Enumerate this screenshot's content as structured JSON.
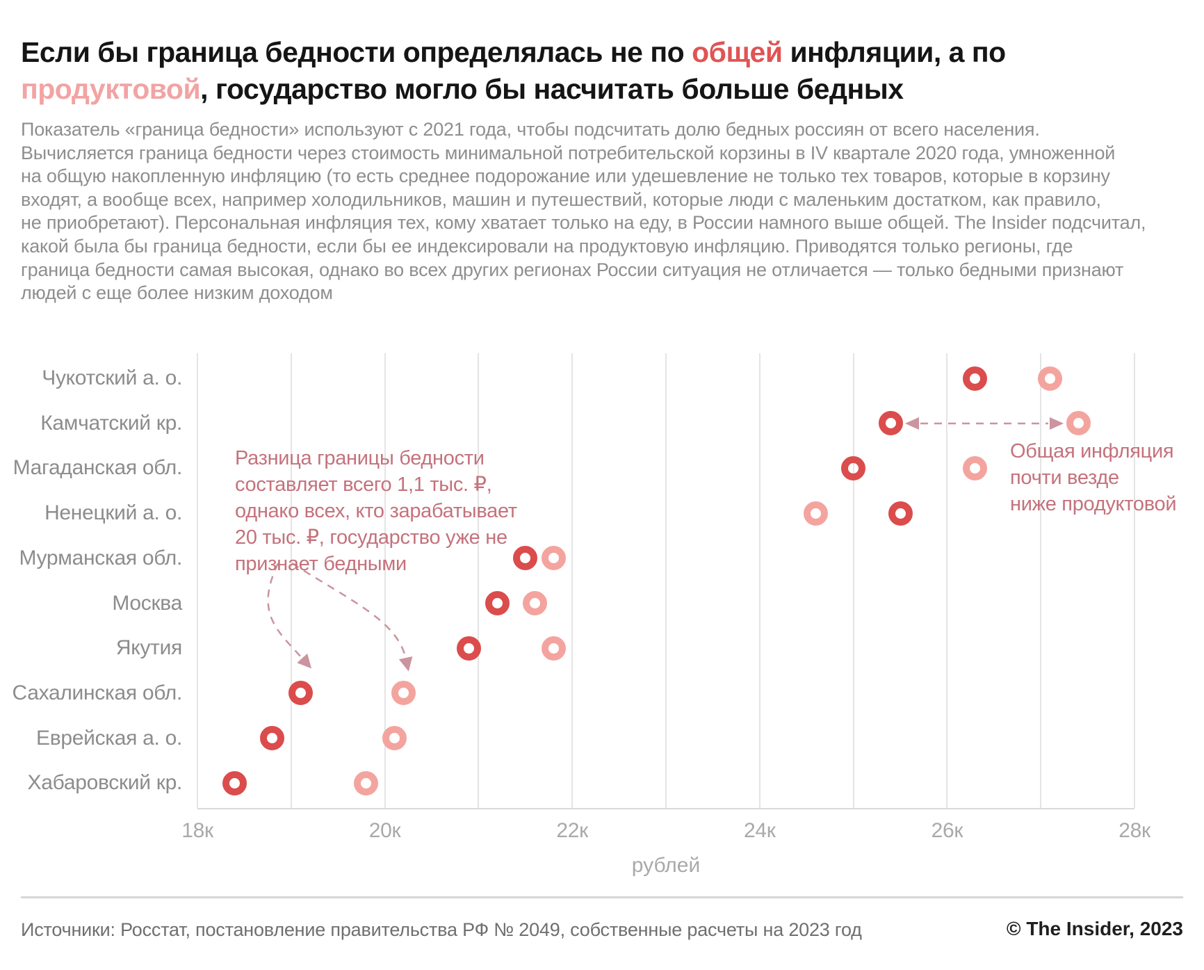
{
  "title": {
    "part1": "Если бы граница бедности определялась не по ",
    "highlight_general": "общей",
    "part2": " инфляции, а по ",
    "highlight_food": "продуктовой",
    "part3": ", государство могло бы насчитать больше бедных"
  },
  "intro": {
    "text": "Показатель «граница бедности» используют с 2021 года, чтобы подсчитать долю бедных россиян от всего населения.\nВычисляется граница бедности через стоимость минимальной потребительской корзины в IV квартале 2020 года, умноженной\nна общую накопленную инфляцию (то есть среднее подорожание или удешевление не только тех товаров, которые в корзину\nвходят, а вообще всех, например холодильников, машин и путешествий, которые люди с маленьким достатком, как правило,\nне приобретают). Персональная инфляция тех, кому хватает только на еду, в России намного выше общей. The Insider подсчитал,\nкакой была бы граница бедности, если бы ее индексировали на продуктовую инфляцию. Приводятся только регионы, где\nграница бедности самая высокая, однако во всех других регионах России ситуация не отличается — только бедными признают\nлюдей с еще более низким доходом"
  },
  "chart_data": {
    "type": "scatter",
    "orientation": "horizontal-dot-plot",
    "categories": [
      "Чукотский а. о.",
      "Камчатский кр.",
      "Магаданская обл.",
      "Ненецкий а. о.",
      "Мурманская обл.",
      "Москва",
      "Якутия",
      "Сахалинская обл.",
      "Еврейская а. о.",
      "Хабаровский кр."
    ],
    "series": [
      {
        "name": "Граница бедности по общей инфляции",
        "color": "#db4c4c",
        "values": [
          26.3,
          25.4,
          25.0,
          25.5,
          21.5,
          21.2,
          20.9,
          19.1,
          18.8,
          18.4
        ]
      },
      {
        "name": "Граница бедности по продуктовой инфляции",
        "color": "#f4a49e",
        "values": [
          27.1,
          27.4,
          26.3,
          24.6,
          21.8,
          21.6,
          21.8,
          20.2,
          20.1,
          19.8
        ]
      }
    ],
    "unit": "тыс. рублей",
    "xlabel": "рублей",
    "x_ticks": [
      "18к",
      "20к",
      "22к",
      "24к",
      "26к",
      "28к"
    ],
    "xlim": [
      18,
      28
    ],
    "grid": "vertical-every-1k",
    "legend": "none"
  },
  "annotations": {
    "left_note": "Разница границы бедности\nсоставляет всего 1,1 тыс. ₽,\nоднако всех, кто зарабатывает\n20 тыс. ₽, государство уже не\nпризнает бедными",
    "right_note": "Общая инфляция\nпочти везде\nниже продуктовой"
  },
  "footer": {
    "sources": "Источники: Росстат, постановление правительства РФ № 2049, собственные расчеты на 2023 год",
    "copyright": "© The Insider, 2023"
  },
  "colors": {
    "title_text": "#151515",
    "title_highlight_general": "#e05454",
    "title_highlight_food": "#f2a3a3",
    "point_general_inflation": "#db4c4c",
    "point_food_inflation": "#f4a49e",
    "annotation_text": "#c4727c",
    "arrow": "#cb949e",
    "gridline": "#e4e4e4",
    "body_text": "#8e8e8e"
  }
}
